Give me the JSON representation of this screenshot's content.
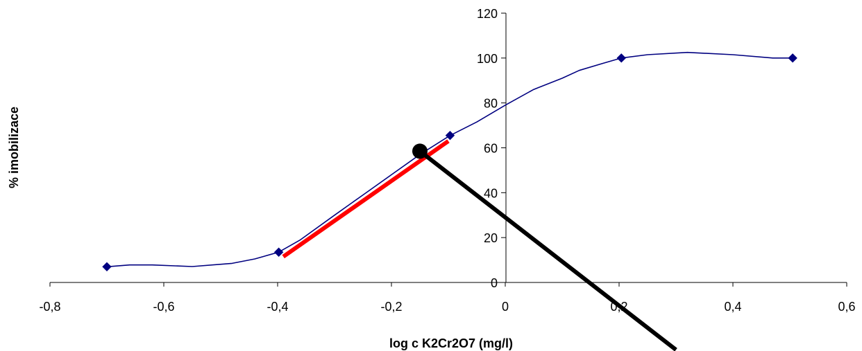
{
  "chart_data": {
    "type": "line",
    "title": "",
    "xlabel": "log c K2Cr2O7 (mg/l)",
    "ylabel": "% imobilizace",
    "xlim": [
      -0.8,
      0.6
    ],
    "ylim": [
      0,
      120
    ],
    "x_ticks": [
      -0.8,
      -0.6,
      -0.4,
      -0.2,
      0,
      0.2,
      0.4,
      0.6
    ],
    "x_tick_labels": [
      "-0,8",
      "-0,6",
      "-0,4",
      "-0,2",
      "0",
      "0,2",
      "0,4",
      "0,6"
    ],
    "y_ticks": [
      0,
      20,
      40,
      60,
      80,
      100,
      120
    ],
    "y_tick_labels": [
      "0",
      "20",
      "40",
      "60",
      "80",
      "100",
      "120"
    ],
    "grid": false,
    "legend": "none",
    "series": [
      {
        "color": "#000080",
        "marker": "diamond",
        "points": [
          [
            -0.7,
            7
          ],
          [
            -0.398,
            13.5
          ],
          [
            -0.097,
            65.5
          ],
          [
            0.204,
            100
          ],
          [
            0.505,
            100
          ]
        ],
        "smoothed_curve": [
          [
            -0.7,
            7
          ],
          [
            -0.66,
            7.8
          ],
          [
            -0.62,
            7.8
          ],
          [
            -0.55,
            7.1
          ],
          [
            -0.48,
            8.5
          ],
          [
            -0.44,
            10.5
          ],
          [
            -0.398,
            13.5
          ],
          [
            -0.36,
            19
          ],
          [
            -0.3,
            30
          ],
          [
            -0.25,
            39
          ],
          [
            -0.2,
            48
          ],
          [
            -0.15,
            57
          ],
          [
            -0.097,
            65.5
          ],
          [
            -0.05,
            71.5
          ],
          [
            0,
            79
          ],
          [
            0.05,
            86
          ],
          [
            0.1,
            91
          ],
          [
            0.13,
            94.5
          ],
          [
            0.17,
            97.5
          ],
          [
            0.204,
            100
          ],
          [
            0.25,
            101.5
          ],
          [
            0.32,
            102.5
          ],
          [
            0.4,
            101.5
          ],
          [
            0.47,
            100
          ],
          [
            0.505,
            100
          ]
        ]
      }
    ],
    "annotations": {
      "fit_line": {
        "color": "#ff0000",
        "from": [
          -0.39,
          11.5
        ],
        "to": [
          -0.1,
          63
        ]
      },
      "marker_point": {
        "color": "#000000",
        "at": [
          -0.15,
          58.5
        ]
      },
      "pointer_line": {
        "color": "#000000",
        "from": [
          -0.15,
          58.5
        ],
        "to": [
          0.3,
          -30
        ]
      }
    }
  }
}
